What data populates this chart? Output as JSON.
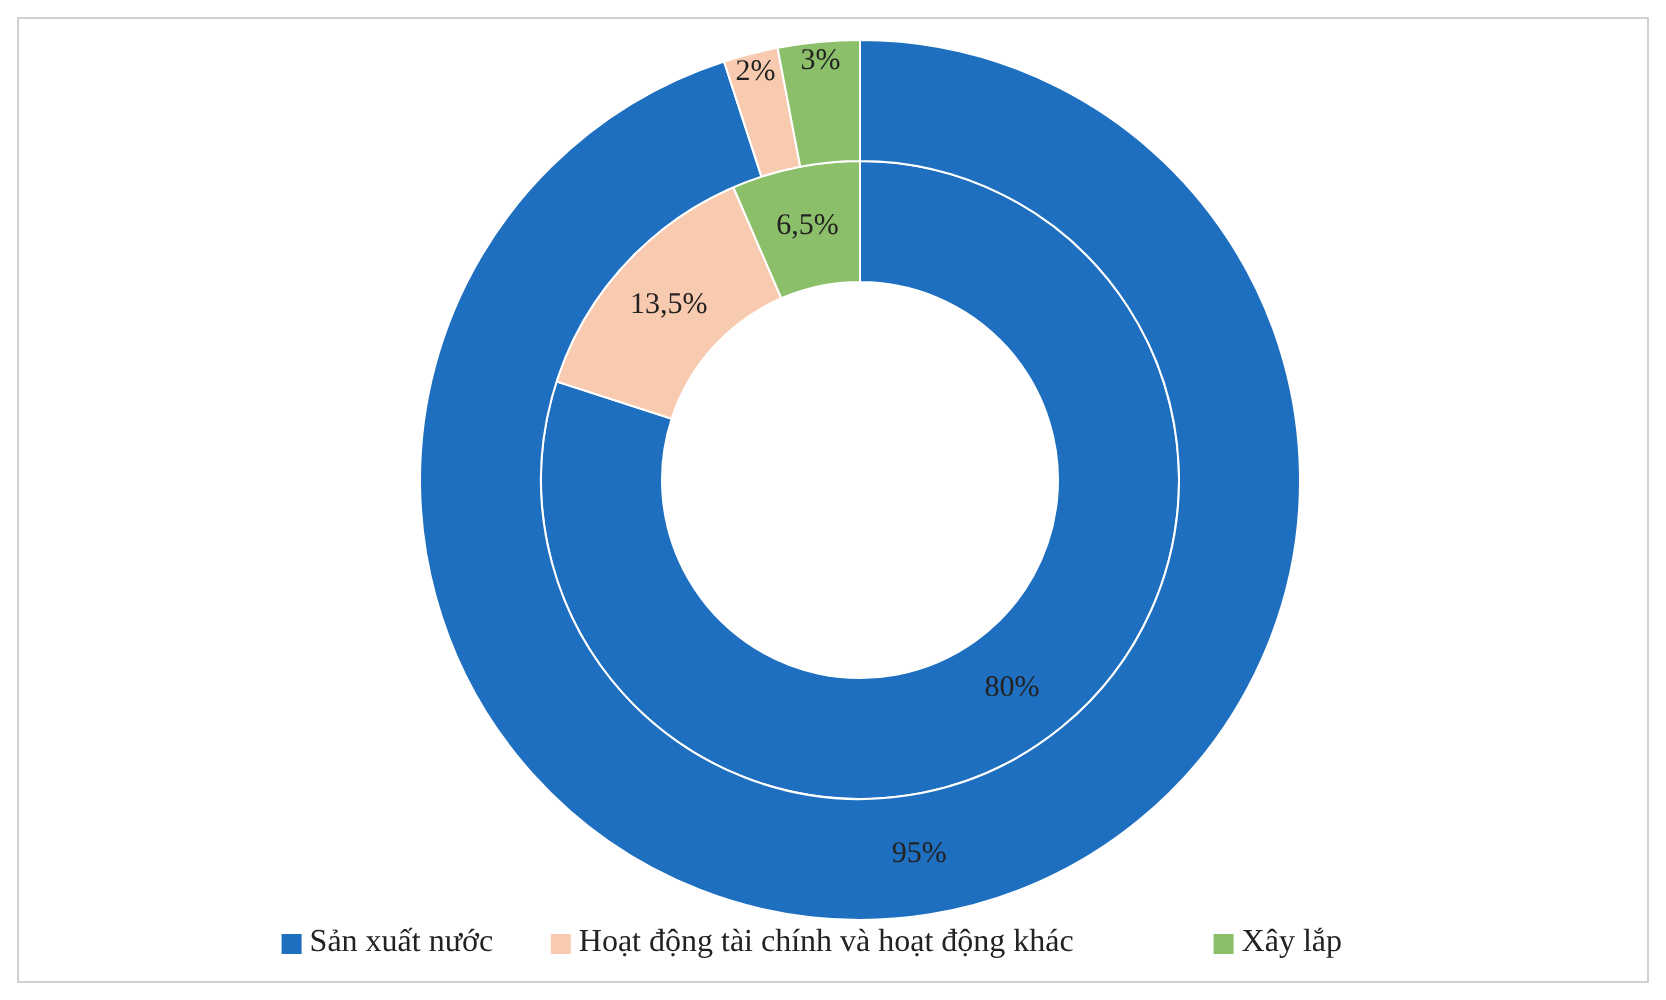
{
  "chart_data": {
    "type": "donut",
    "categories": [
      "Sản xuất nước",
      "Hoạt động tài chính và hoạt động khác",
      "Xây lắp"
    ],
    "colors": [
      "#1f6fc0",
      "#f8cbb0",
      "#8cbf6a"
    ],
    "legend": "bottom",
    "series": [
      {
        "values": [
          80,
          13.5,
          6.5
        ],
        "value_labels": [
          "80%",
          "13,5%",
          "6,5%"
        ]
      },
      {
        "values": [
          95,
          2,
          3
        ],
        "value_labels": [
          "95%",
          "2%",
          "3%"
        ]
      }
    ]
  }
}
